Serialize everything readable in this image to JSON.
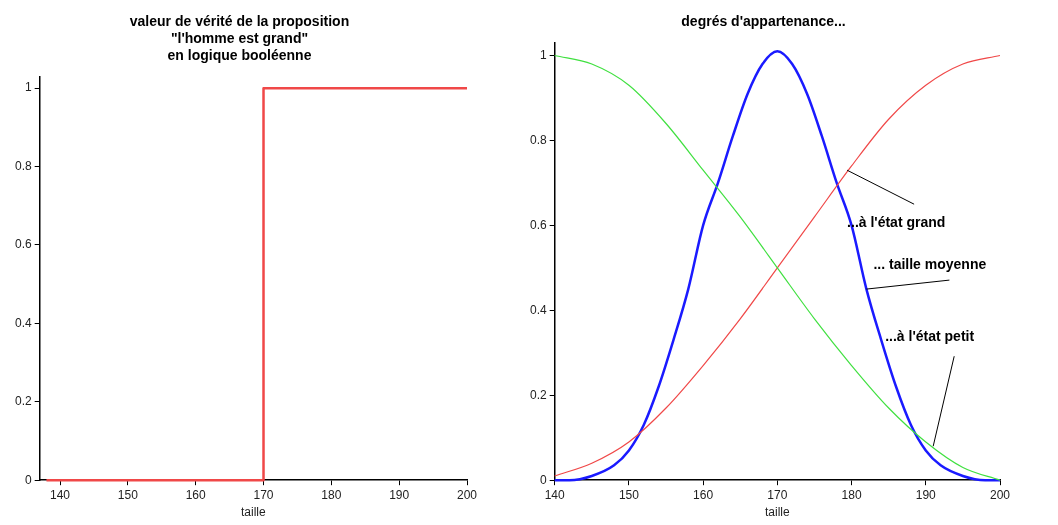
{
  "chart_data": [
    {
      "type": "step",
      "title": "valeur de vérité de la proposition\n\"l'homme est grand\"\nen logique booléenne",
      "xlabel": "taille",
      "x": [
        138,
        170,
        200
      ],
      "values": [
        0,
        1,
        1
      ],
      "color": "#f04848",
      "xlim": [
        137,
        200
      ],
      "xticks": [
        140,
        150,
        160,
        170,
        180,
        190,
        200
      ],
      "ylim": [
        0,
        1.03
      ],
      "yticks": [
        0,
        0.2,
        0.4,
        0.6,
        0.8,
        1
      ],
      "grid": false,
      "legend": false
    },
    {
      "type": "line",
      "title": "degrés d'appartenance...",
      "xlabel": "taille",
      "x": [
        140,
        145,
        150,
        155,
        160,
        165,
        170,
        175,
        180,
        185,
        190,
        195,
        200
      ],
      "xlim": [
        140,
        200
      ],
      "xticks": [
        140,
        150,
        160,
        170,
        180,
        190,
        200
      ],
      "ylim": [
        0,
        1.03
      ],
      "yticks": [
        0,
        0.2,
        0.4,
        0.6,
        0.8,
        1
      ],
      "grid": false,
      "legend": false,
      "series": [
        {
          "color": "#40e040",
          "values": [
            1.0,
            0.98,
            0.93,
            0.84,
            0.73,
            0.62,
            0.5,
            0.38,
            0.27,
            0.17,
            0.09,
            0.03,
            0.0
          ]
        },
        {
          "color": "#f04848",
          "values": [
            0.01,
            0.04,
            0.09,
            0.17,
            0.27,
            0.38,
            0.5,
            0.62,
            0.74,
            0.85,
            0.93,
            0.98,
            1.0
          ]
        },
        {
          "color": "#1a1aff",
          "x": [
            140,
            142,
            145,
            148,
            150,
            152,
            154,
            156,
            158,
            160,
            162,
            164,
            166,
            168,
            170,
            172,
            174,
            176,
            178,
            180,
            182,
            184,
            186,
            188,
            190,
            192,
            195,
            198,
            200
          ],
          "values": [
            0,
            0,
            0.01,
            0.035,
            0.07,
            0.13,
            0.22,
            0.33,
            0.45,
            0.6,
            0.7,
            0.81,
            0.91,
            0.98,
            1.01,
            0.98,
            0.91,
            0.81,
            0.7,
            0.6,
            0.45,
            0.33,
            0.22,
            0.13,
            0.07,
            0.035,
            0.01,
            0,
            0
          ]
        }
      ],
      "annotations": [
        {
          "text": "...à l'état grand",
          "x": 179.4,
          "y": 0.73
        },
        {
          "text": "... taille moyenne",
          "x": 182,
          "y": 0.45
        },
        {
          "text": "...à l'état petit",
          "x": 191,
          "y": 0.08
        }
      ]
    }
  ]
}
